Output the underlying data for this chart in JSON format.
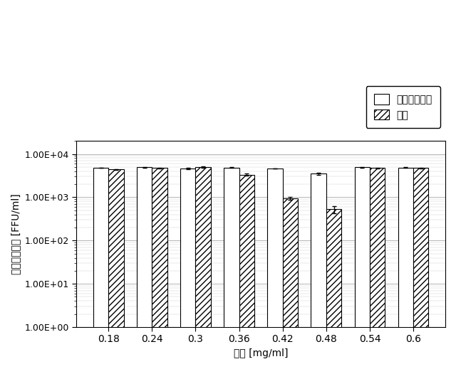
{
  "categories": [
    "0.18",
    "0.24",
    "0.3",
    "0.36",
    "0.42",
    "0.48",
    "0.54",
    "0.6"
  ],
  "control_values": [
    4800,
    4900,
    4600,
    4800,
    4600,
    3500,
    4900,
    4800
  ],
  "control_err": [
    80,
    100,
    130,
    90,
    70,
    180,
    90,
    90
  ],
  "take_values": [
    4400,
    4750,
    5000,
    3300,
    950,
    530,
    4750,
    4750
  ],
  "take_err": [
    120,
    130,
    160,
    180,
    70,
    100,
    110,
    110
  ],
  "ylabel": "ウイルスカ値 [FFU/ml]",
  "xlabel": "濃度 [mg/ml]",
  "legend_label_control": "コントロール",
  "legend_label_take": "タケ",
  "background_color": "#ffffff",
  "plot_bg": "#ffffff",
  "bar_width": 0.35,
  "ylim_low": 1.0,
  "ylim_high": 20000,
  "yticks": [
    1.0,
    10.0,
    100.0,
    1000.0,
    10000.0
  ],
  "ytick_labels": [
    "1.00E+00",
    "1.00E+01",
    "1.00E+02",
    "1.00E+03",
    "1.00E+04"
  ],
  "grid_major_color": "#aaaaaa",
  "grid_minor_color": "#cccccc",
  "grid_major_lw": 0.6,
  "grid_minor_lw": 0.3
}
